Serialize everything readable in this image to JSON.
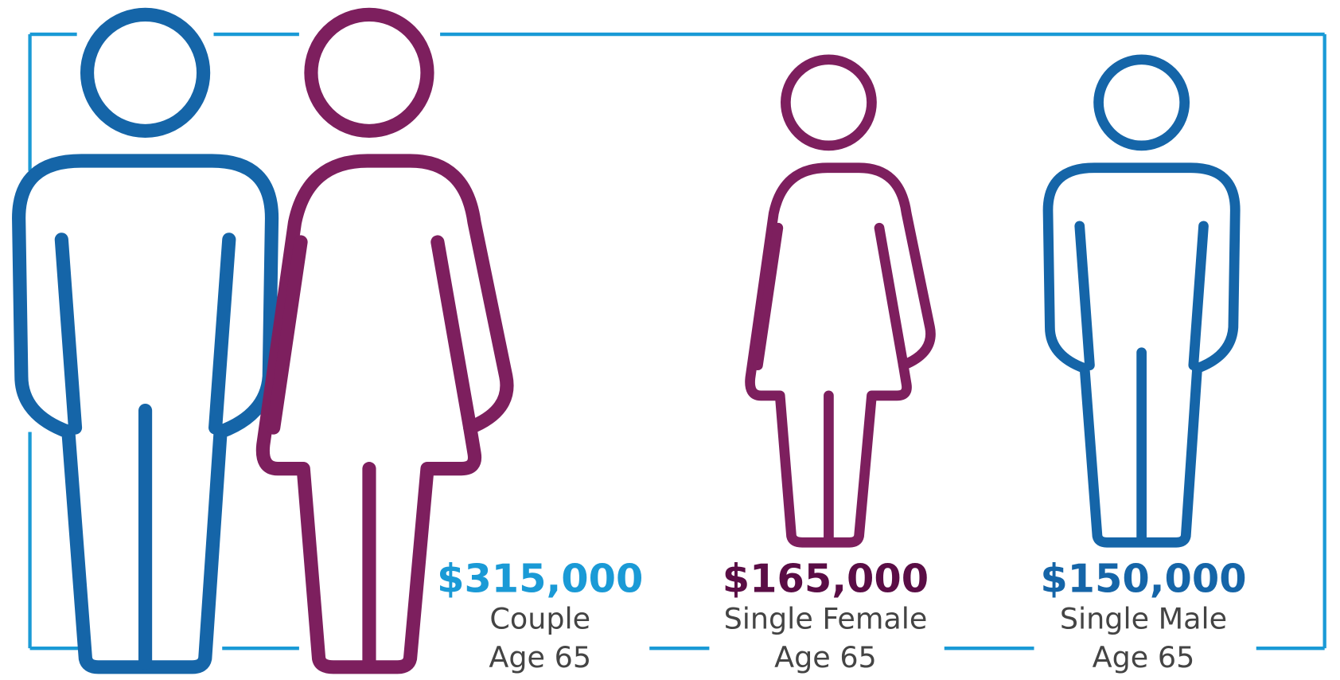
{
  "items": [
    {
      "amount": "$315,000",
      "label": "Couple",
      "age": "Age 65"
    },
    {
      "amount": "$165,000",
      "label": "Single Female",
      "age": "Age 65"
    },
    {
      "amount": "$150,000",
      "label": "Single Male",
      "age": "Age 65"
    }
  ]
}
